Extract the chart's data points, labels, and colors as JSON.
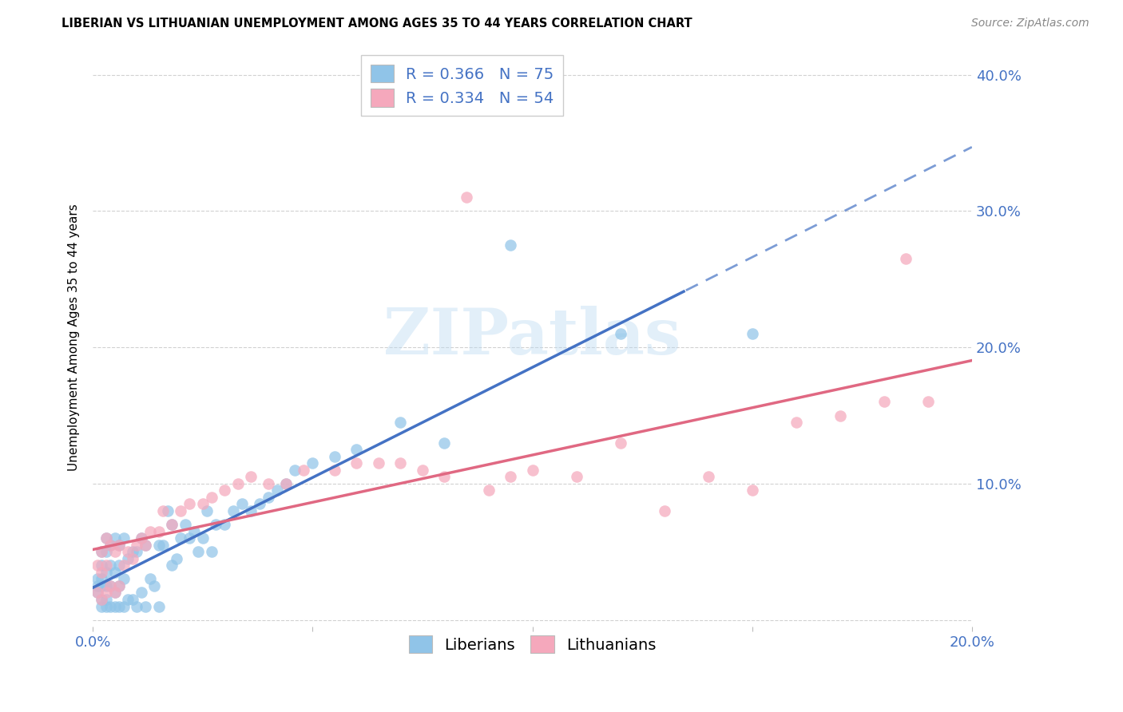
{
  "title": "LIBERIAN VS LITHUANIAN UNEMPLOYMENT AMONG AGES 35 TO 44 YEARS CORRELATION CHART",
  "source": "Source: ZipAtlas.com",
  "ylabel": "Unemployment Among Ages 35 to 44 years",
  "xlim": [
    0.0,
    0.2
  ],
  "ylim": [
    -0.005,
    0.42
  ],
  "xtick_vals": [
    0.0,
    0.05,
    0.1,
    0.15,
    0.2
  ],
  "xticklabels": [
    "0.0%",
    "",
    "",
    "",
    "20.0%"
  ],
  "ytick_vals": [
    0.0,
    0.1,
    0.2,
    0.3,
    0.4
  ],
  "right_yticklabels": [
    "",
    "10.0%",
    "20.0%",
    "30.0%",
    "40.0%"
  ],
  "liberian_color": "#90C4E8",
  "lithuanian_color": "#F5A8BC",
  "liberian_line_color": "#4472C4",
  "lithuanian_line_color": "#E06882",
  "axis_label_color": "#4472C4",
  "background_color": "#FFFFFF",
  "grid_color": "#CCCCCC",
  "liberian_R": 0.366,
  "liberian_N": 75,
  "lithuanian_R": 0.334,
  "lithuanian_N": 54,
  "watermark_text": "ZIPatlas",
  "title_fontsize": 10.5,
  "source_fontsize": 10,
  "tick_fontsize": 13,
  "ylabel_fontsize": 11,
  "legend_fontsize": 14,
  "marker_size": 110,
  "liberian_x": [
    0.001,
    0.001,
    0.001,
    0.002,
    0.002,
    0.002,
    0.002,
    0.002,
    0.002,
    0.003,
    0.003,
    0.003,
    0.003,
    0.003,
    0.003,
    0.004,
    0.004,
    0.004,
    0.004,
    0.005,
    0.005,
    0.005,
    0.005,
    0.006,
    0.006,
    0.006,
    0.006,
    0.007,
    0.007,
    0.007,
    0.008,
    0.008,
    0.009,
    0.009,
    0.01,
    0.01,
    0.011,
    0.011,
    0.012,
    0.012,
    0.013,
    0.014,
    0.015,
    0.015,
    0.016,
    0.017,
    0.018,
    0.018,
    0.019,
    0.02,
    0.021,
    0.022,
    0.023,
    0.024,
    0.025,
    0.026,
    0.027,
    0.028,
    0.03,
    0.032,
    0.034,
    0.036,
    0.038,
    0.04,
    0.042,
    0.044,
    0.046,
    0.05,
    0.055,
    0.06,
    0.07,
    0.08,
    0.095,
    0.12,
    0.15
  ],
  "liberian_y": [
    0.02,
    0.025,
    0.03,
    0.01,
    0.015,
    0.025,
    0.03,
    0.04,
    0.05,
    0.01,
    0.015,
    0.025,
    0.035,
    0.05,
    0.06,
    0.01,
    0.025,
    0.04,
    0.055,
    0.01,
    0.02,
    0.035,
    0.06,
    0.01,
    0.025,
    0.04,
    0.055,
    0.01,
    0.03,
    0.06,
    0.015,
    0.045,
    0.015,
    0.05,
    0.01,
    0.05,
    0.02,
    0.06,
    0.01,
    0.055,
    0.03,
    0.025,
    0.01,
    0.055,
    0.055,
    0.08,
    0.04,
    0.07,
    0.045,
    0.06,
    0.07,
    0.06,
    0.065,
    0.05,
    0.06,
    0.08,
    0.05,
    0.07,
    0.07,
    0.08,
    0.085,
    0.08,
    0.085,
    0.09,
    0.095,
    0.1,
    0.11,
    0.115,
    0.12,
    0.125,
    0.145,
    0.13,
    0.275,
    0.21,
    0.21
  ],
  "lithuanian_x": [
    0.001,
    0.001,
    0.002,
    0.002,
    0.002,
    0.003,
    0.003,
    0.003,
    0.004,
    0.004,
    0.005,
    0.005,
    0.006,
    0.006,
    0.007,
    0.008,
    0.009,
    0.01,
    0.011,
    0.012,
    0.013,
    0.015,
    0.016,
    0.018,
    0.02,
    0.022,
    0.025,
    0.027,
    0.03,
    0.033,
    0.036,
    0.04,
    0.044,
    0.048,
    0.055,
    0.06,
    0.065,
    0.07,
    0.075,
    0.08,
    0.085,
    0.09,
    0.095,
    0.1,
    0.11,
    0.12,
    0.13,
    0.14,
    0.15,
    0.16,
    0.17,
    0.18,
    0.185,
    0.19
  ],
  "lithuanian_y": [
    0.02,
    0.04,
    0.015,
    0.035,
    0.05,
    0.02,
    0.04,
    0.06,
    0.025,
    0.055,
    0.02,
    0.05,
    0.025,
    0.055,
    0.04,
    0.05,
    0.045,
    0.055,
    0.06,
    0.055,
    0.065,
    0.065,
    0.08,
    0.07,
    0.08,
    0.085,
    0.085,
    0.09,
    0.095,
    0.1,
    0.105,
    0.1,
    0.1,
    0.11,
    0.11,
    0.115,
    0.115,
    0.115,
    0.11,
    0.105,
    0.31,
    0.095,
    0.105,
    0.11,
    0.105,
    0.13,
    0.08,
    0.105,
    0.095,
    0.145,
    0.15,
    0.16,
    0.265,
    0.16
  ]
}
